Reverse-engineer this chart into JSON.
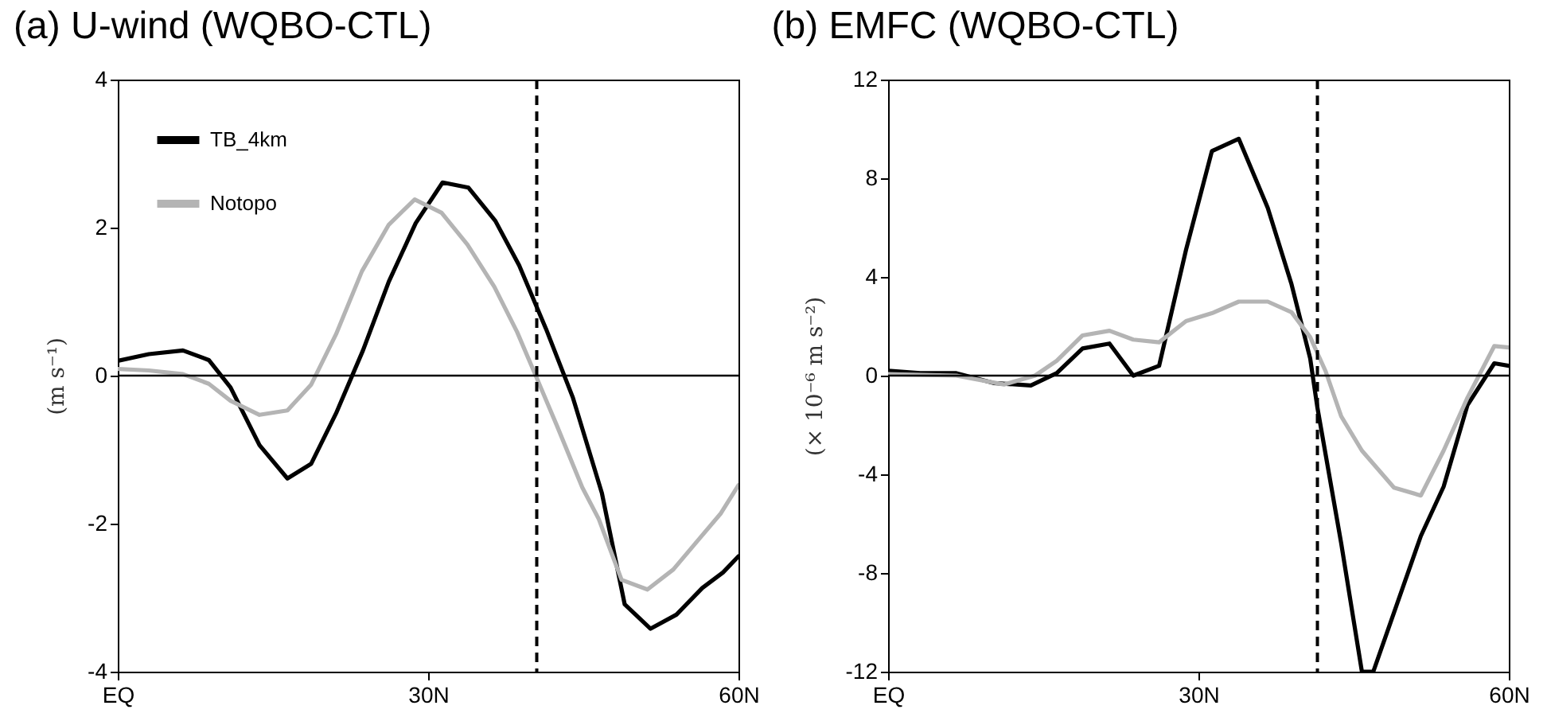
{
  "chart_data": [
    {
      "type": "line",
      "title": "(a) U-wind  (WQBO-CTL)",
      "ylabel": "(m s⁻¹)",
      "xlim": [
        0,
        60
      ],
      "xticks": [
        {
          "value": 0,
          "label": "EQ"
        },
        {
          "value": 30,
          "label": "30N"
        },
        {
          "value": 60,
          "label": "60N"
        }
      ],
      "ylim": [
        -4,
        4
      ],
      "yticks": [
        -4,
        -2,
        0,
        2,
        4
      ],
      "legend": "top left",
      "line_style": "solid",
      "ref_lines": [
        {
          "axis": "y",
          "value": 0,
          "color": "#000000",
          "line_style": "solid"
        },
        {
          "axis": "x",
          "value": 40.5,
          "color": "#000000",
          "line_style": "dashed"
        }
      ],
      "series": [
        {
          "name": "TB_4km",
          "color": "#000000",
          "x": [
            0,
            3,
            6.3,
            8.8,
            10.9,
            13.7,
            16.4,
            18.7,
            21.1,
            23.7,
            26.2,
            28.8,
            31.4,
            33.9,
            36.5,
            38.8,
            41.4,
            44,
            46.8,
            49,
            51.5,
            54,
            56.5,
            58.5,
            60
          ],
          "values": [
            0.2,
            0.29,
            0.34,
            0.21,
            -0.16,
            -0.94,
            -1.39,
            -1.19,
            -0.51,
            0.34,
            1.27,
            2.06,
            2.61,
            2.54,
            2.09,
            1.49,
            0.63,
            -0.3,
            -1.59,
            -3.09,
            -3.42,
            -3.23,
            -2.87,
            -2.66,
            -2.44
          ]
        },
        {
          "name": "Notopo",
          "color": "#b4b4b4",
          "x": [
            0,
            3,
            6.3,
            8.8,
            10.9,
            13.7,
            16.4,
            18.7,
            21.1,
            23.6,
            26.2,
            28.7,
            31.3,
            33.8,
            36.4,
            38.6,
            40.4,
            42.4,
            44.9,
            46.5,
            48.7,
            51.2,
            53.7,
            56.3,
            58.3,
            60
          ],
          "values": [
            0.09,
            0.07,
            0.02,
            -0.11,
            -0.34,
            -0.53,
            -0.47,
            -0.12,
            0.56,
            1.41,
            2.04,
            2.38,
            2.2,
            1.77,
            1.2,
            0.59,
            0,
            -0.66,
            -1.51,
            -1.94,
            -2.76,
            -2.89,
            -2.62,
            -2.19,
            -1.86,
            -1.48
          ]
        }
      ]
    },
    {
      "type": "line",
      "title": "(b) EMFC (WQBO-CTL)",
      "ylabel": "(× 10⁻⁶ m s⁻²)",
      "xlim": [
        0,
        60
      ],
      "xticks": [
        {
          "value": 0,
          "label": "EQ"
        },
        {
          "value": 30,
          "label": "30N"
        },
        {
          "value": 60,
          "label": "60N"
        }
      ],
      "ylim": [
        -12,
        12
      ],
      "yticks": [
        -12,
        -8,
        -4,
        0,
        4,
        8,
        12
      ],
      "line_style": "solid",
      "ref_lines": [
        {
          "axis": "y",
          "value": 0,
          "color": "#000000",
          "line_style": "solid"
        },
        {
          "axis": "x",
          "value": 41.5,
          "color": "#000000",
          "line_style": "dashed"
        }
      ],
      "series": [
        {
          "color": "#000000",
          "x": [
            0,
            3.1,
            6.6,
            10.2,
            13.8,
            16.3,
            18.8,
            21.4,
            23.7,
            26.2,
            28.8,
            31.3,
            33.9,
            36.7,
            39,
            40.8,
            41.5,
            43.8,
            45.8,
            46.9,
            51.5,
            53.7,
            56,
            58.6,
            60
          ],
          "values": [
            0.2,
            0.1,
            0.1,
            -0.3,
            -0.4,
            0.1,
            1.1,
            1.3,
            0,
            0.4,
            5.1,
            9.1,
            9.6,
            6.8,
            3.7,
            0.7,
            -1.3,
            -6.8,
            -12,
            -12,
            -6.5,
            -4.5,
            -1.2,
            0.5,
            0.4
          ]
        },
        {
          "color": "#b4b4b4",
          "x": [
            0,
            6.6,
            11.2,
            14.2,
            16.3,
            18.8,
            21.4,
            23.7,
            26.2,
            28.8,
            31.3,
            33.9,
            36.7,
            39,
            40.8,
            42.3,
            43.8,
            45.8,
            48.9,
            51.5,
            53.7,
            56,
            58.6,
            60
          ],
          "values": [
            0.06,
            0,
            -0.36,
            0,
            0.6,
            1.63,
            1.82,
            1.46,
            1.35,
            2.21,
            2.53,
            3.0,
            3.0,
            2.57,
            1.56,
            0.17,
            -1.65,
            -3.04,
            -4.54,
            -4.86,
            -3.04,
            -0.9,
            1.2,
            1.14
          ]
        }
      ]
    }
  ]
}
